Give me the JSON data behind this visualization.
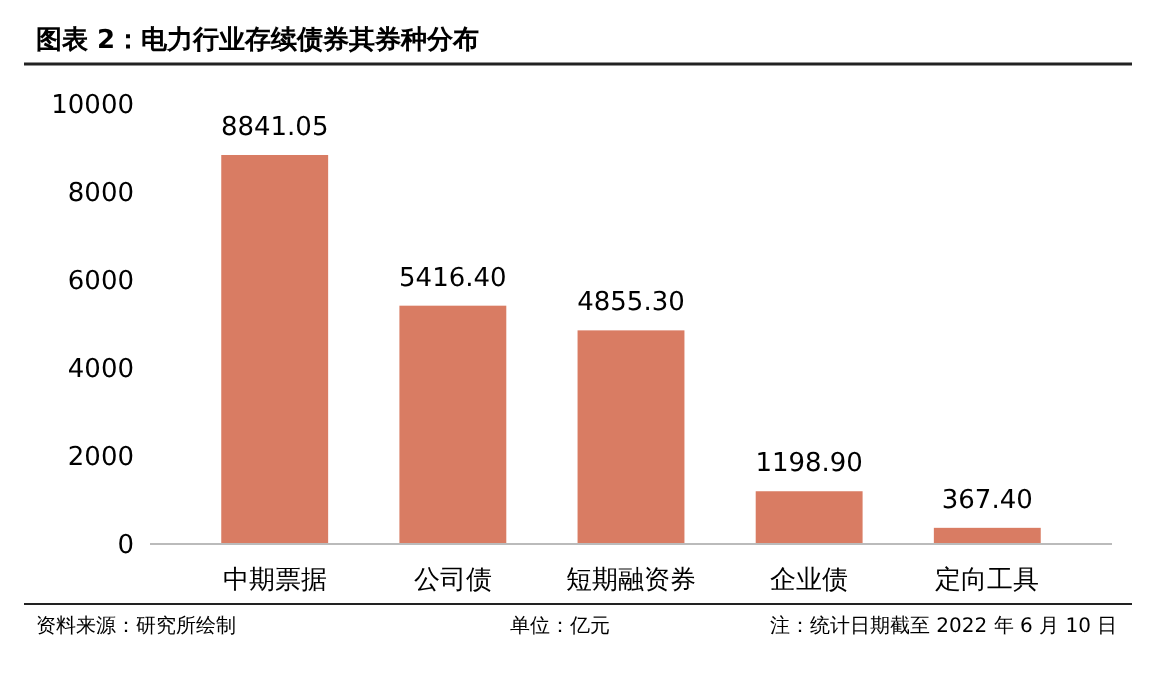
{
  "chart_data": {
    "type": "bar",
    "title": "图表 2：电力行业存续债券其券种分布",
    "categories": [
      "中期票据",
      "公司债",
      "短期融资券",
      "企业债",
      "定向工具"
    ],
    "values": [
      8841.05,
      5416.4,
      4855.3,
      1198.9,
      367.4
    ],
    "value_labels": [
      "8841.05",
      "5416.40",
      "4855.30",
      "1198.90",
      "367.40"
    ],
    "color": "#d97c63",
    "ylim": [
      0,
      10000
    ],
    "yticks": [
      0,
      2000,
      4000,
      6000,
      8000,
      10000
    ],
    "grid": false,
    "annotations": [
      "资料来源：研究所绘制",
      "单位：亿元",
      "注：统计日期截至 2022 年 6 月 10 日"
    ]
  }
}
